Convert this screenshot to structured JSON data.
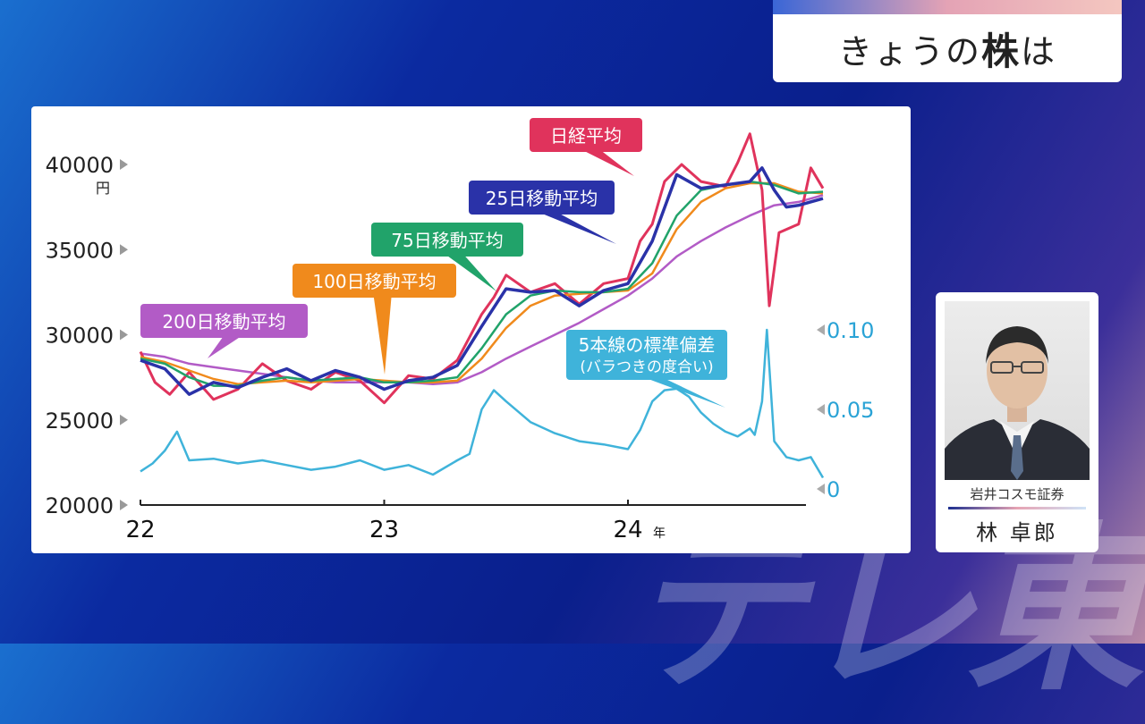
{
  "topic": {
    "prefix": "きょうの",
    "strong": "株",
    "suffix": "は"
  },
  "guest": {
    "affiliation": "岩井コスモ証券",
    "name": "林 卓郎"
  },
  "watermark": "テレ東",
  "chart_data": {
    "type": "line",
    "ylabel_unit": "円",
    "y_ticks": [
      "40000",
      "35000",
      "30000",
      "25000",
      "20000"
    ],
    "y_range": [
      20000,
      40000
    ],
    "y2_ticks": [
      "0.10",
      "0.05",
      "0"
    ],
    "y2_range": [
      0,
      0.1
    ],
    "x_ticks": [
      "22",
      "23",
      "24"
    ],
    "x_unit": "年",
    "colors": {
      "nikkei": "#e0335c",
      "ma25": "#2a32a8",
      "ma75": "#21a36a",
      "ma100": "#f08a1c",
      "ma200": "#b25bc6",
      "stdev": "#3fb3da"
    },
    "series": [
      {
        "name": "日経平均",
        "key": "nikkei",
        "x": [
          2022.0,
          2022.06,
          2022.12,
          2022.2,
          2022.3,
          2022.4,
          2022.5,
          2022.6,
          2022.7,
          2022.8,
          2022.9,
          2023.0,
          2023.1,
          2023.2,
          2023.3,
          2023.4,
          2023.45,
          2023.5,
          2023.6,
          2023.7,
          2023.8,
          2023.9,
          2024.0,
          2024.05,
          2024.1,
          2024.15,
          2024.22,
          2024.3,
          2024.4,
          2024.45,
          2024.5,
          2024.55,
          2024.58,
          2024.62,
          2024.7,
          2024.75,
          2024.8
        ],
        "values": [
          29000,
          27200,
          26500,
          27800,
          26200,
          26800,
          28300,
          27300,
          26800,
          27800,
          27300,
          26000,
          27600,
          27400,
          28500,
          31200,
          32200,
          33500,
          32500,
          33000,
          31800,
          33000,
          33300,
          35500,
          36500,
          39000,
          40000,
          39000,
          38700,
          40100,
          41800,
          38500,
          31700,
          36000,
          36500,
          39800,
          38600
        ]
      },
      {
        "name": "25日移動平均",
        "key": "ma25",
        "x": [
          2022.0,
          2022.1,
          2022.2,
          2022.3,
          2022.4,
          2022.5,
          2022.6,
          2022.7,
          2022.8,
          2022.9,
          2023.0,
          2023.1,
          2023.2,
          2023.3,
          2023.4,
          2023.5,
          2023.6,
          2023.7,
          2023.8,
          2023.9,
          2024.0,
          2024.1,
          2024.2,
          2024.3,
          2024.4,
          2024.5,
          2024.55,
          2024.6,
          2024.65,
          2024.7,
          2024.8
        ],
        "values": [
          28500,
          28000,
          26500,
          27200,
          26900,
          27500,
          28000,
          27300,
          27900,
          27500,
          26800,
          27300,
          27500,
          28200,
          30500,
          32700,
          32500,
          32600,
          31700,
          32600,
          33000,
          35500,
          39400,
          38600,
          38800,
          39000,
          39800,
          38500,
          37500,
          37600,
          38000
        ]
      },
      {
        "name": "75日移動平均",
        "key": "ma75",
        "x": [
          2022.0,
          2022.1,
          2022.2,
          2022.3,
          2022.4,
          2022.5,
          2022.6,
          2022.7,
          2022.8,
          2022.9,
          2023.0,
          2023.1,
          2023.2,
          2023.3,
          2023.4,
          2023.5,
          2023.6,
          2023.7,
          2023.8,
          2023.9,
          2024.0,
          2024.1,
          2024.2,
          2024.3,
          2024.4,
          2024.5,
          2024.6,
          2024.7,
          2024.8
        ],
        "values": [
          28600,
          28300,
          27500,
          27000,
          27000,
          27300,
          27500,
          27300,
          27400,
          27500,
          27200,
          27200,
          27300,
          27500,
          29200,
          31200,
          32300,
          32600,
          32500,
          32500,
          32700,
          34200,
          37000,
          38500,
          38800,
          39000,
          38800,
          38300,
          38400
        ]
      },
      {
        "name": "100日移動平均",
        "key": "ma100",
        "x": [
          2022.0,
          2022.1,
          2022.2,
          2022.3,
          2022.4,
          2022.5,
          2022.6,
          2022.7,
          2022.8,
          2022.9,
          2023.0,
          2023.1,
          2023.2,
          2023.3,
          2023.4,
          2023.5,
          2023.6,
          2023.7,
          2023.8,
          2023.9,
          2024.0,
          2024.1,
          2024.2,
          2024.3,
          2024.4,
          2024.5,
          2024.6,
          2024.7,
          2024.8
        ],
        "values": [
          28700,
          28400,
          27900,
          27400,
          27100,
          27200,
          27300,
          27200,
          27300,
          27400,
          27300,
          27200,
          27200,
          27300,
          28600,
          30400,
          31700,
          32300,
          32400,
          32500,
          32600,
          33600,
          36200,
          37800,
          38600,
          38900,
          38900,
          38400,
          38300
        ]
      },
      {
        "name": "200日移動平均",
        "key": "ma200",
        "x": [
          2022.0,
          2022.1,
          2022.2,
          2022.3,
          2022.4,
          2022.5,
          2022.6,
          2022.7,
          2022.8,
          2022.9,
          2023.0,
          2023.1,
          2023.2,
          2023.3,
          2023.4,
          2023.5,
          2023.6,
          2023.7,
          2023.8,
          2023.9,
          2024.0,
          2024.1,
          2024.2,
          2024.3,
          2024.4,
          2024.5,
          2024.6,
          2024.7,
          2024.8
        ],
        "values": [
          28900,
          28700,
          28300,
          28100,
          27900,
          27700,
          27500,
          27300,
          27200,
          27200,
          27200,
          27200,
          27100,
          27200,
          27800,
          28600,
          29300,
          30000,
          30700,
          31500,
          32300,
          33300,
          34600,
          35500,
          36300,
          37000,
          37600,
          37800,
          38200
        ]
      },
      {
        "name": "5本線の標準偏差",
        "key": "stdev",
        "axis": "y2",
        "x": [
          2022.0,
          2022.05,
          2022.1,
          2022.15,
          2022.2,
          2022.3,
          2022.4,
          2022.5,
          2022.6,
          2022.7,
          2022.8,
          2022.9,
          2023.0,
          2023.1,
          2023.2,
          2023.3,
          2023.35,
          2023.4,
          2023.45,
          2023.5,
          2023.6,
          2023.7,
          2023.8,
          2023.9,
          2024.0,
          2024.05,
          2024.1,
          2024.15,
          2024.2,
          2024.25,
          2024.3,
          2024.35,
          2024.4,
          2024.45,
          2024.5,
          2024.52,
          2024.55,
          2024.57,
          2024.6,
          2024.65,
          2024.7,
          2024.75,
          2024.8
        ],
        "values": [
          0.011,
          0.016,
          0.024,
          0.036,
          0.018,
          0.019,
          0.016,
          0.018,
          0.015,
          0.012,
          0.014,
          0.018,
          0.012,
          0.015,
          0.009,
          0.018,
          0.022,
          0.05,
          0.062,
          0.055,
          0.042,
          0.035,
          0.03,
          0.028,
          0.025,
          0.037,
          0.055,
          0.062,
          0.063,
          0.058,
          0.048,
          0.041,
          0.036,
          0.033,
          0.038,
          0.034,
          0.055,
          0.1,
          0.03,
          0.02,
          0.018,
          0.02,
          0.007
        ]
      }
    ],
    "annotations": [
      {
        "text": "日経平均",
        "series": "nikkei"
      },
      {
        "text": "25日移動平均",
        "series": "ma25"
      },
      {
        "text": "75日移動平均",
        "series": "ma75"
      },
      {
        "text": "100日移動平均",
        "series": "ma100"
      },
      {
        "text": "200日移動平均",
        "series": "ma200"
      },
      {
        "text": "5本線の標準偏差",
        "text2": "(バラつきの度合い)",
        "series": "stdev"
      }
    ]
  }
}
